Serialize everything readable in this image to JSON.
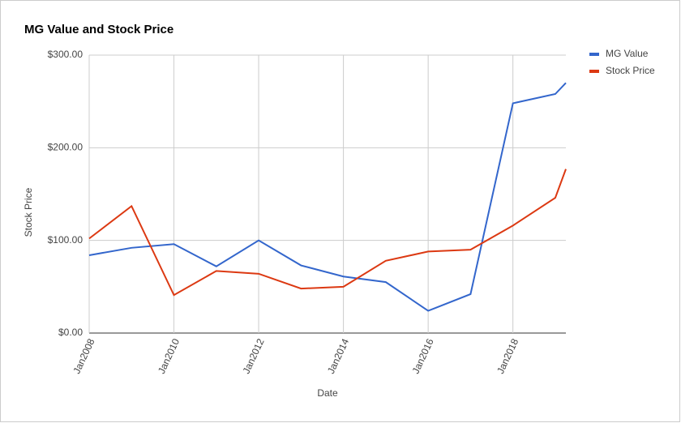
{
  "chart_data": {
    "type": "line",
    "title": "MG Value and Stock Price",
    "x_label": "Date",
    "y_label": "Stock Price",
    "x": [
      "2008-01",
      "2009-01",
      "2010-01",
      "2011-01",
      "2012-01",
      "2013-01",
      "2014-01",
      "2015-01",
      "2016-01",
      "2017-01",
      "2018-01",
      "2019-01",
      "2019-04"
    ],
    "series": [
      {
        "name": "MG Value",
        "color": "#3366cc",
        "values": [
          84,
          92,
          96,
          72,
          100,
          73,
          61,
          55,
          24,
          42,
          248,
          258,
          270
        ]
      },
      {
        "name": "Stock Price",
        "color": "#dc3912",
        "values": [
          102,
          137,
          41,
          67,
          64,
          48,
          50,
          78,
          88,
          90,
          116,
          146,
          177
        ]
      }
    ],
    "xlim": [
      "2008-01",
      "2019-04"
    ],
    "xticks": [
      {
        "value": "2008-01",
        "label": "Jan2008"
      },
      {
        "value": "2010-01",
        "label": "Jan2010"
      },
      {
        "value": "2012-01",
        "label": "Jan2012"
      },
      {
        "value": "2014-01",
        "label": "Jan2014"
      },
      {
        "value": "2016-01",
        "label": "Jan2016"
      },
      {
        "value": "2018-01",
        "label": "Jan2018"
      }
    ],
    "ylim": [
      0,
      300
    ],
    "yticks": [
      {
        "value": 0,
        "label": "$0.00"
      },
      {
        "value": 100,
        "label": "$100.00"
      },
      {
        "value": 200,
        "label": "$200.00"
      },
      {
        "value": 300,
        "label": "$300.00"
      }
    ],
    "grid": true,
    "legend": "right"
  }
}
